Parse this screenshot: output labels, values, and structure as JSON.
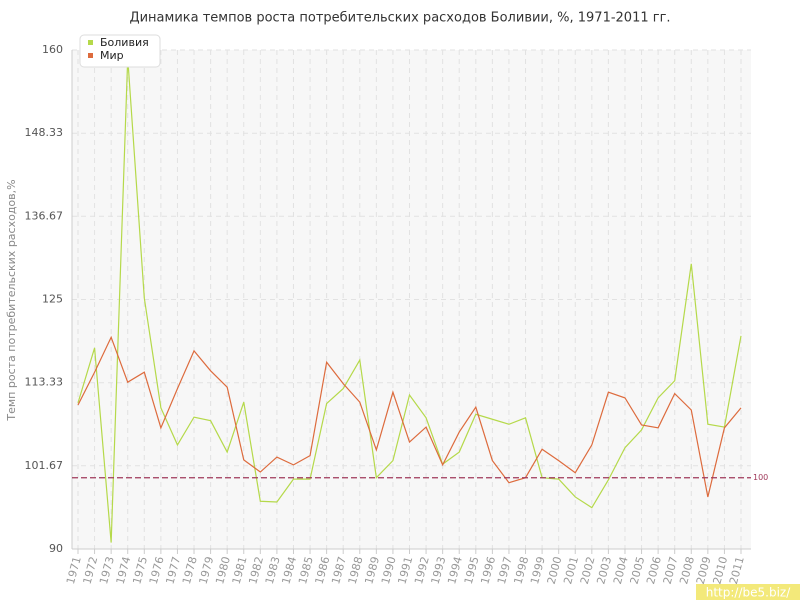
{
  "chart_data": {
    "type": "line",
    "title": "Динамика темпов роста потребительских расходов Боливии, %, 1971-2011 гг.",
    "y_label": "Темп роста потребительских расходов,%",
    "categories": [
      "1971",
      "1972",
      "1973",
      "1974",
      "1975",
      "1976",
      "1977",
      "1978",
      "1979",
      "1980",
      "1981",
      "1982",
      "1983",
      "1984",
      "1985",
      "1986",
      "1987",
      "1988",
      "1989",
      "1990",
      "1991",
      "1992",
      "1993",
      "1994",
      "1995",
      "1996",
      "1997",
      "1998",
      "1999",
      "2000",
      "2001",
      "2002",
      "2003",
      "2004",
      "2005",
      "2006",
      "2007",
      "2008",
      "2009",
      "2010",
      "2011"
    ],
    "series": [
      {
        "name": "Боливия",
        "color": "#b5d94a",
        "values": [
          110.5,
          118.2,
          90.9,
          158.9,
          125.2,
          109.8,
          104.6,
          108.5,
          108.0,
          103.6,
          110.6,
          96.7,
          96.6,
          99.8,
          99.8,
          110.4,
          112.5,
          116.5,
          100.0,
          102.4,
          111.6,
          108.4,
          101.9,
          103.6,
          108.9,
          108.2,
          107.5,
          108.4,
          100.0,
          99.8,
          97.3,
          95.8,
          99.7,
          104.2,
          106.7,
          111.2,
          113.6,
          130.0,
          107.5,
          107.1,
          119.9
        ]
      },
      {
        "name": "Мир",
        "color": "#dd6b3d",
        "values": [
          110.2,
          114.8,
          119.7,
          113.4,
          114.8,
          107.0,
          112.5,
          117.8,
          115.0,
          112.7,
          102.5,
          100.8,
          102.9,
          101.8,
          103.1,
          116.2,
          113.2,
          110.6,
          103.9,
          112.0,
          105.0,
          107.1,
          101.8,
          106.4,
          109.9,
          102.4,
          99.3,
          100.0,
          104.0,
          102.4,
          100.7,
          104.6,
          112.0,
          111.2,
          107.4,
          107.0,
          111.8,
          109.5,
          97.3,
          107.0,
          109.8
        ]
      }
    ],
    "ylim": [
      90,
      160
    ],
    "yticks": [
      90,
      101.67,
      113.33,
      125,
      136.67,
      148.33,
      160
    ],
    "reference_line": 100,
    "reference_color": "#a0395a",
    "grid": true,
    "legend": "top-left",
    "watermark": "http://be5.biz/"
  }
}
